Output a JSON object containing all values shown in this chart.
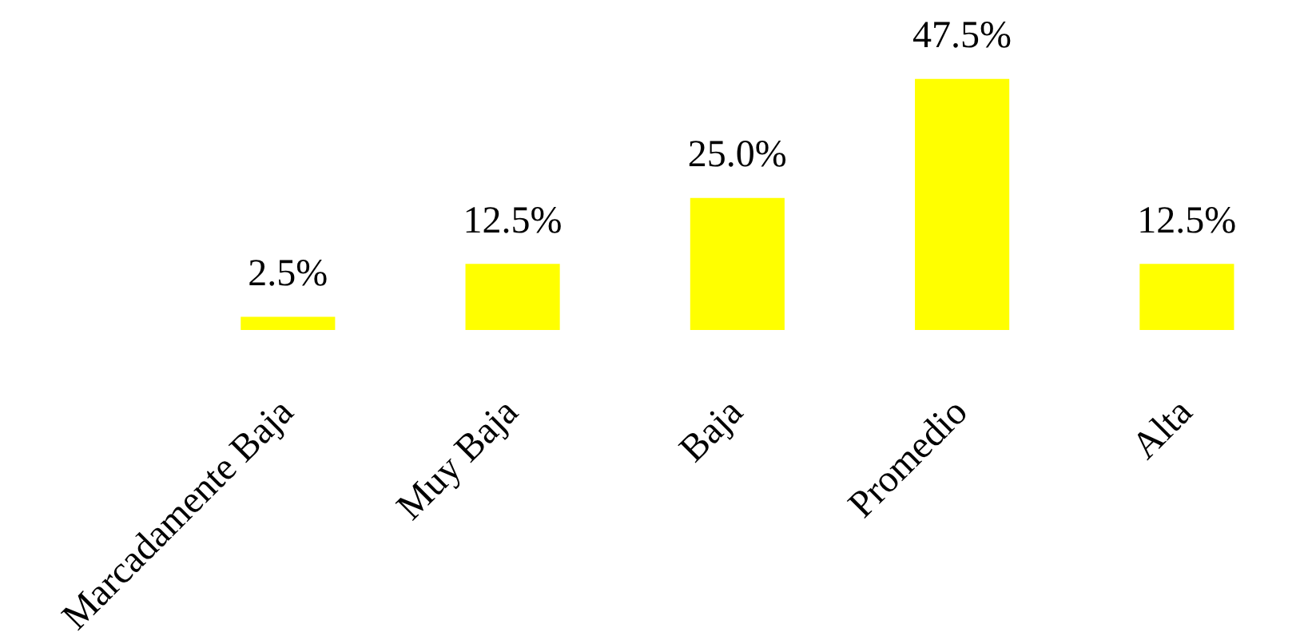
{
  "chart_data": {
    "type": "bar",
    "categories": [
      "Marcadamente Baja",
      "Muy Baja",
      "Baja",
      "Promedio",
      "Alta"
    ],
    "values": [
      2.5,
      12.5,
      25.0,
      47.5,
      12.5
    ],
    "value_labels": [
      "2.5%",
      "12.5%",
      "25.0%",
      "47.5%",
      "12.5%"
    ],
    "color": "#ffff00",
    "tick_labels": "x",
    "grid": false,
    "legend": false
  }
}
